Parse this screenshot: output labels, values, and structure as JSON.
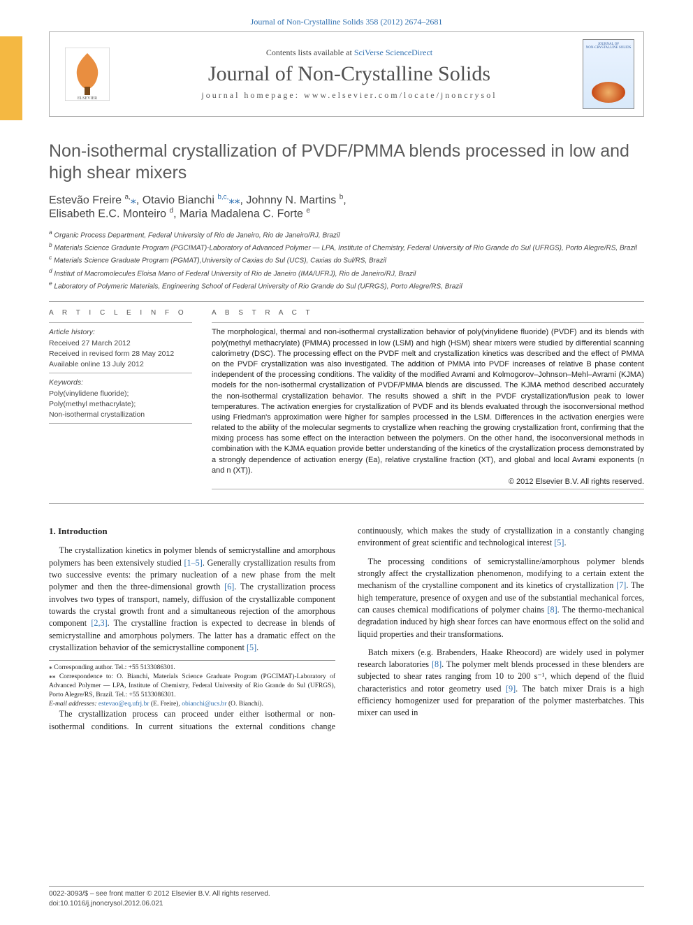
{
  "header": {
    "citation": "Journal of Non-Crystalline Solids 358 (2012) 2674–2681",
    "contents_available": "Contents lists available at ",
    "scidirect": "SciVerse ScienceDirect",
    "journal_name": "Journal of Non-Crystalline Solids",
    "homepage_label": "journal homepage: www.elsevier.com/locate/jnoncrysol",
    "cover_caption_top": "JOURNAL OF",
    "cover_caption_title": "NON-CRYSTALLINE SOLIDS"
  },
  "title": "Non-isothermal crystallization of PVDF/PMMA blends processed in low and high shear mixers",
  "authors_html": "Estevão Freire <sup>a,</sup><span class=\"au-link\">⁎</span>, Otavio Bianchi <span class=\"au-link\"><sup>b,c,</sup>⁎⁎</span>, Johnny N. Martins <sup>b</sup>,<br>Elisabeth E.C. Monteiro <sup>d</sup>, Maria Madalena C. Forte <sup>e</sup>",
  "affiliations": [
    "a  Organic Process Department, Federal University of Rio de Janeiro, Rio de Janeiro/RJ, Brazil",
    "b  Materials Science Graduate Program (PGCIMAT)-Laboratory of Advanced Polymer — LPA, Institute of Chemistry, Federal University of Rio Grande do Sul (UFRGS), Porto Alegre/RS, Brazil",
    "c  Materials Science Graduate Program (PGMAT),University of Caxias do Sul (UCS), Caxias do Sul/RS, Brazil",
    "d  Institut of Macromolecules Eloisa Mano of Federal University of Rio de Janeiro (IMA/UFRJ), Rio de Janeiro/RJ, Brazil",
    "e  Laboratory of Polymeric Materials, Engineering School of Federal University of Rio Grande do Sul (UFRGS), Porto Alegre/RS, Brazil"
  ],
  "article_info_head": "a r t i c l e   i n f o",
  "abstract_head": "a b s t r a c t",
  "history_label": "Article history:",
  "history": [
    "Received 27 March 2012",
    "Received in revised form 28 May 2012",
    "Available online 13 July 2012"
  ],
  "keywords_label": "Keywords:",
  "keywords": [
    "Poly(vinylidene fluoride);",
    "Poly(methyl methacrylate);",
    "Non-isothermal crystallization"
  ],
  "abstract": "The morphological, thermal and non-isothermal crystallization behavior of poly(vinylidene fluoride) (PVDF) and its blends with poly(methyl methacrylate) (PMMA) processed in low (LSM) and high (HSM) shear mixers were studied by differential scanning calorimetry (DSC). The processing effect on the PVDF melt and crystallization kinetics was described and the effect of PMMA on the PVDF crystallization was also investigated. The addition of PMMA into PVDF increases of relative B phase content independent of the processing conditions. The validity of the modified Avrami and Kolmogorov–Johnson–Mehl–Avrami (KJMA) models for the non-isothermal crystallization of PVDF/PMMA blends are discussed. The KJMA method described accurately the non-isothermal crystallization behavior. The results showed a shift in the PVDF crystallization/fusion peak to lower temperatures. The activation energies for crystallization of PVDF and its blends evaluated through the isoconversional method using Friedman's approximation were higher for samples processed in the LSM. Differences in the activation energies were related to the ability of the molecular segments to crystallize when reaching the growing crystallization front, confirming that the mixing process has some effect on the interaction between the polymers. On the other hand, the isoconversional methods in combination with the KJMA equation provide better understanding of the kinetics of the crystallization process demonstrated by a strongly dependence of activation energy (Ea), relative crystalline fraction (XT), and global and local Avrami exponents (n and n (XT)).",
  "copyright": "© 2012 Elsevier B.V. All rights reserved.",
  "intro_head": "1. Introduction",
  "intro_p1": "The crystallization kinetics in polymer blends of semicrystalline and amorphous polymers has been extensively studied [1–5]. Generally crystallization results from two successive events: the primary nucleation of a new phase from the melt polymer and then the three-dimensional growth [6]. The crystallization process involves two types of transport, namely, diffusion of the crystallizable component towards the crystal growth front and a simultaneous rejection of the amorphous component [2,3]. The crystalline fraction is expected to decrease in blends of semicrystalline and amorphous polymers. The latter has a dramatic effect on the crystallization behavior of the semicrystalline component [5].",
  "intro_p2": "The crystallization process can proceed under either isothermal or non-isothermal conditions. In current situations the external conditions change continuously, which makes the study of crystallization in a constantly changing environment of great scientific and technological interest [5].",
  "intro_p3": "The processing conditions of semicrystalline/amorphous polymer blends strongly affect the crystallization phenomenon, modifying to a certain extent the mechanism of the crystalline component and its kinetics of crystallization [7]. The high temperature, presence of oxygen and use of the substantial mechanical forces, can causes chemical modifications of polymer chains [8]. The thermo-mechanical degradation induced by high shear forces can have enormous effect on the solid and liquid properties and their transformations.",
  "intro_p4": "Batch mixers (e.g. Brabenders, Haake Rheocord) are widely used in polymer research laboratories [8]. The polymer melt blends processed in these blenders are subjected to shear rates ranging from 10 to 200 s⁻¹, which depend of the fluid characteristics and rotor geometry used [9]. The batch mixer Drais is a high efficiency homogenizer used for preparation of the polymer masterbatches. This mixer can used in",
  "footnotes": {
    "star1": "⁎ Corresponding author. Tel.: +55 5133086301.",
    "star2": "⁎⁎ Correspondence to: O. Bianchi, Materials Science Graduate Program (PGCIMAT)-Laboratory of Advanced Polymer — LPA, Institute of Chemistry, Federal University of Rio Grande do Sul (UFRGS), Porto Alegre/RS, Brazil. Tel.: +55 5133086301.",
    "emails_label": "E-mail addresses: ",
    "email1": "estevao@eq.ufrj.br",
    "email1_tail": " (E. Freire), ",
    "email2": "obianchi@ucs.br",
    "email2_tail": " (O. Bianchi)."
  },
  "bottom": {
    "l1": "0022-3093/$ – see front matter © 2012 Elsevier B.V. All rights reserved.",
    "l2": "doi:10.1016/j.jnoncrysol.2012.06.021"
  },
  "colors": {
    "link": "#3070b0",
    "accent_stripe": "#f4b842",
    "title_gray": "#5a5a5a",
    "rule": "#888888"
  }
}
